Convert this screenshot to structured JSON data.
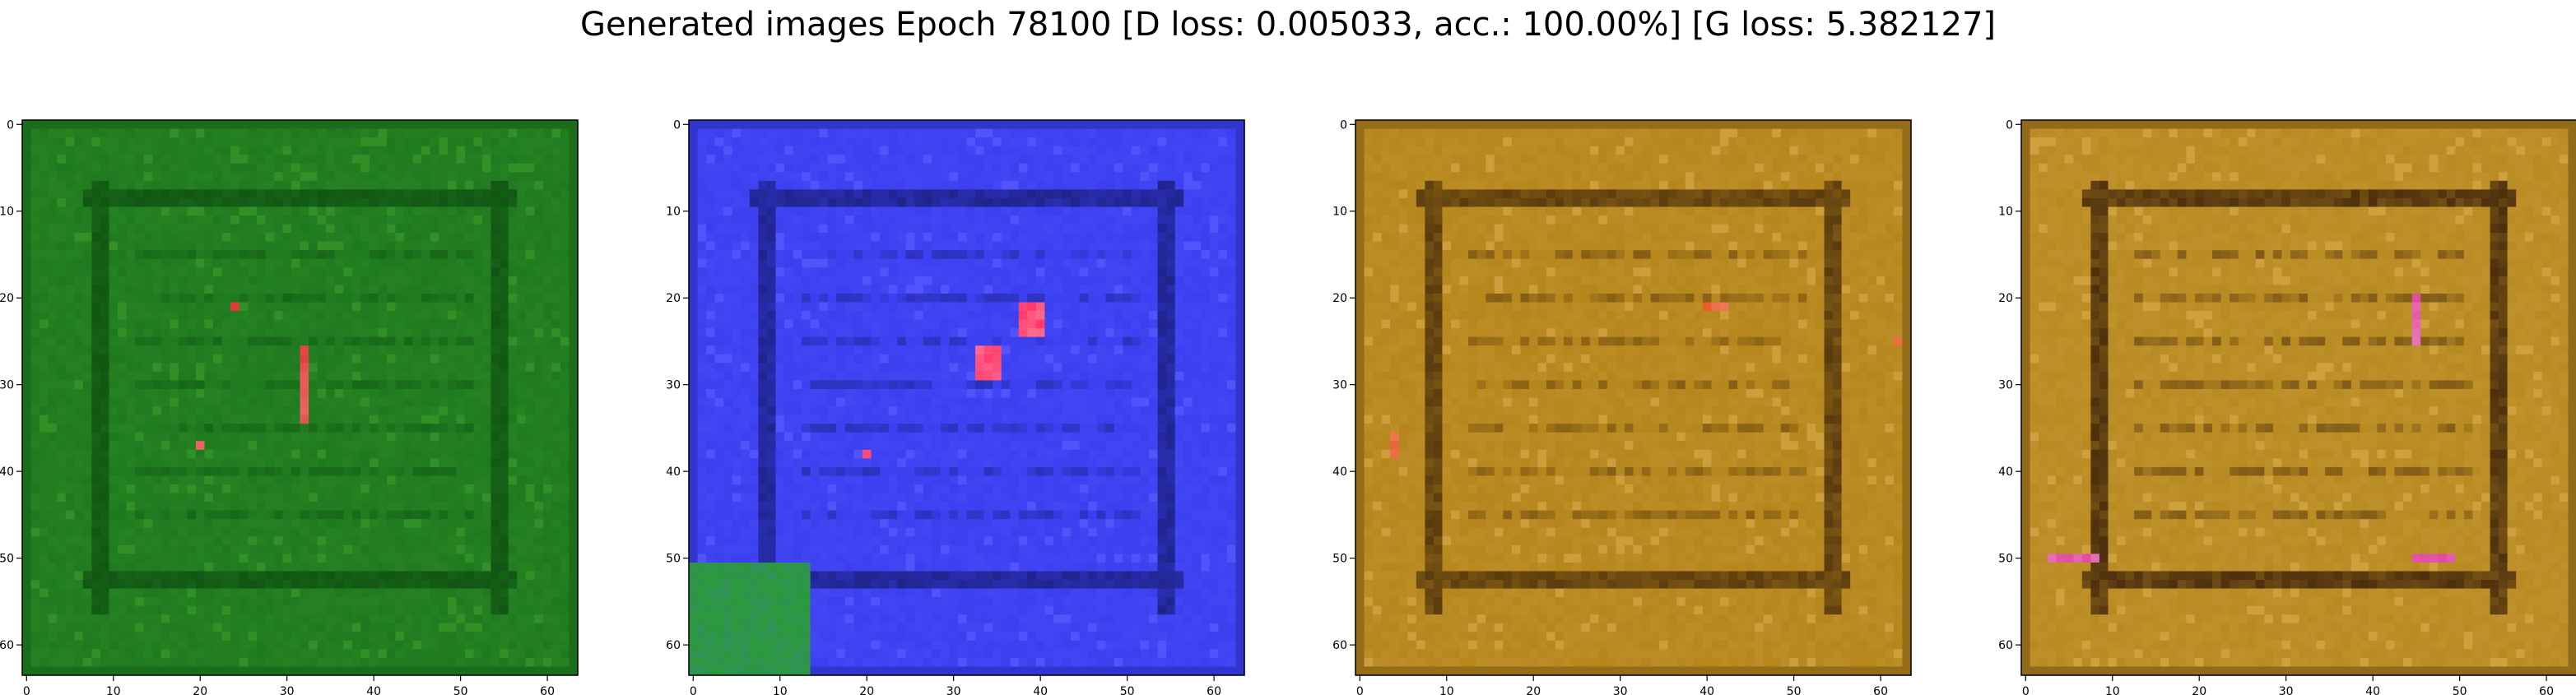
{
  "title": "Generated images Epoch 78100 [D loss: 0.005033, acc.: 100.00%] [G loss: 5.382127]",
  "chart_data": [
    {
      "type": "heatmap",
      "xlim": [
        0,
        63
      ],
      "ylim": [
        63,
        0
      ],
      "xticks": [
        "0",
        "10",
        "20",
        "30",
        "40",
        "50",
        "60"
      ],
      "yticks": [
        "0",
        "10",
        "20",
        "30",
        "40",
        "50",
        "60"
      ],
      "grid": false,
      "palette": {
        "base": "#1f7a1f",
        "dark": "#0f4f12",
        "light": "#3a9a2a",
        "accent": "#e23a3a"
      }
    },
    {
      "type": "heatmap",
      "xlim": [
        0,
        63
      ],
      "ylim": [
        63,
        0
      ],
      "xticks": [
        "0",
        "10",
        "20",
        "30",
        "40",
        "50",
        "60"
      ],
      "yticks": [
        "0",
        "10",
        "20",
        "30",
        "40",
        "50",
        "60"
      ],
      "grid": false,
      "palette": {
        "base": "#3b3ff0",
        "dark": "#1a1f7a",
        "light": "#5a5cff",
        "accent": "#ff3a6a",
        "corner": "#2a9a3a"
      }
    },
    {
      "type": "heatmap",
      "xlim": [
        0,
        63
      ],
      "ylim": [
        63,
        0
      ],
      "xticks": [
        "0",
        "10",
        "20",
        "30",
        "40",
        "50",
        "60"
      ],
      "yticks": [
        "0",
        "10",
        "20",
        "30",
        "40",
        "50",
        "60"
      ],
      "grid": false,
      "palette": {
        "base": "#b5861c",
        "dark": "#4a2e0c",
        "light": "#d6a84a",
        "accent": "#e85a2a"
      }
    },
    {
      "type": "heatmap",
      "xlim": [
        0,
        63
      ],
      "ylim": [
        63,
        0
      ],
      "xticks": [
        "0",
        "10",
        "20",
        "30",
        "40",
        "50",
        "60"
      ],
      "yticks": [
        "0",
        "10",
        "20",
        "30",
        "40",
        "50",
        "60"
      ],
      "grid": false,
      "palette": {
        "base": "#b88a22",
        "dark": "#3a1f0a",
        "light": "#d8aa4a",
        "accent": "#e04aa0"
      }
    }
  ]
}
